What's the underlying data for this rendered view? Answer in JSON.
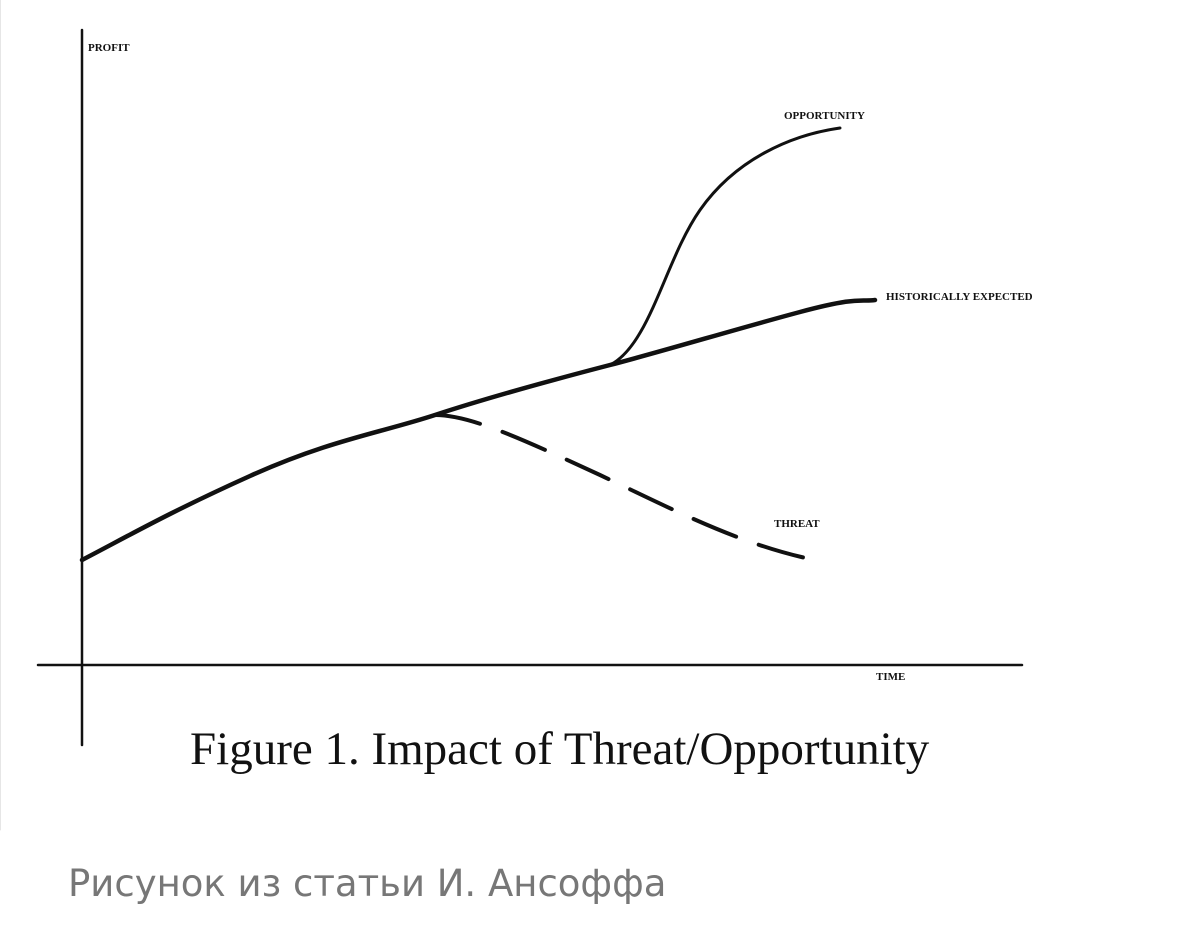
{
  "figure": {
    "y_axis_label": "PROFIT",
    "x_axis_label": "TIME",
    "curve_labels": {
      "opportunity": "OPPORTUNITY",
      "historically_expected": "HISTORICALLY EXPECTED",
      "threat": "THREAT"
    },
    "title": "Figure 1.  Impact of Threat/Opportunity"
  },
  "caption": "Рисунок из статьи И. Ансоффа"
}
